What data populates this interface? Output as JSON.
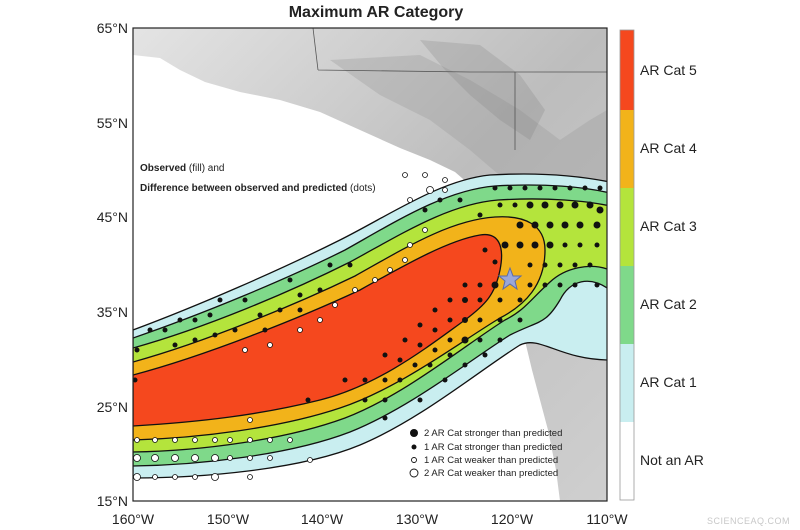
{
  "title": "Maximum AR Category",
  "axes": {
    "y_ticks": [
      "65°N",
      "55°N",
      "45°N",
      "35°N",
      "25°N",
      "15°N"
    ],
    "x_ticks": [
      "160°W",
      "150°W",
      "140°W",
      "130°W",
      "120°W",
      "110°W"
    ]
  },
  "annotation": {
    "line1_bold": "Observed",
    "line1_rest": " (fill) and",
    "line2_bold": "Difference between observed and predicted",
    "line2_rest": " (dots)"
  },
  "dot_key": [
    {
      "label": "2 AR Cat stronger than predicted",
      "style": "large-filled"
    },
    {
      "label": "1 AR Cat stronger than predicted",
      "style": "small-filled"
    },
    {
      "label": "1 AR Cat weaker than predicted",
      "style": "small-open"
    },
    {
      "label": "2 AR Cat weaker than predicted",
      "style": "large-open"
    }
  ],
  "colorbar": [
    {
      "label": "AR Cat 5",
      "color": "#f5481e"
    },
    {
      "label": "AR Cat 4",
      "color": "#f2b31a"
    },
    {
      "label": "AR Cat 3",
      "color": "#b4e43c"
    },
    {
      "label": "AR Cat 2",
      "color": "#7fd98a"
    },
    {
      "label": "AR Cat 1",
      "color": "#c9eef0"
    },
    {
      "label": "Not an AR",
      "color": "#ffffff"
    }
  ],
  "landmark": "star-icon",
  "watermark": "SCIENCEAQ.COM"
}
